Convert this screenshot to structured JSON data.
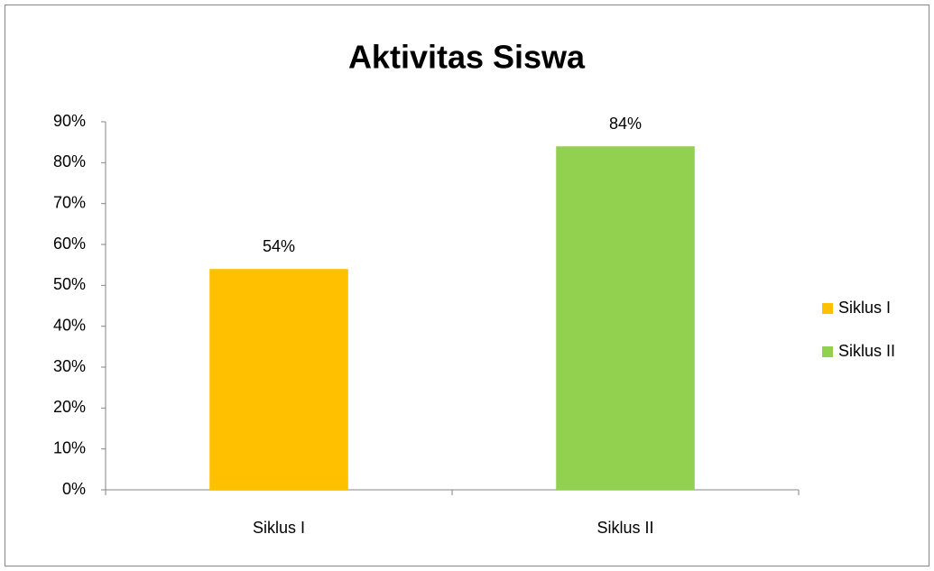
{
  "chart_data": {
    "type": "bar",
    "title": "Aktivitas Siswa",
    "categories": [
      "Siklus I",
      "Siklus II"
    ],
    "values": [
      54,
      84
    ],
    "value_labels": [
      "54%",
      "84%"
    ],
    "colors": [
      "#ffc000",
      "#92d050"
    ],
    "ylim": [
      0,
      90
    ],
    "yticks": [
      {
        "value": 0,
        "label": "0%"
      },
      {
        "value": 10,
        "label": "10%"
      },
      {
        "value": 20,
        "label": "20%"
      },
      {
        "value": 30,
        "label": "30%"
      },
      {
        "value": 40,
        "label": "40%"
      },
      {
        "value": 50,
        "label": "50%"
      },
      {
        "value": 60,
        "label": "60%"
      },
      {
        "value": 70,
        "label": "70%"
      },
      {
        "value": 80,
        "label": "80%"
      },
      {
        "value": 90,
        "label": "90%"
      }
    ],
    "grid": false,
    "legend": "right"
  }
}
